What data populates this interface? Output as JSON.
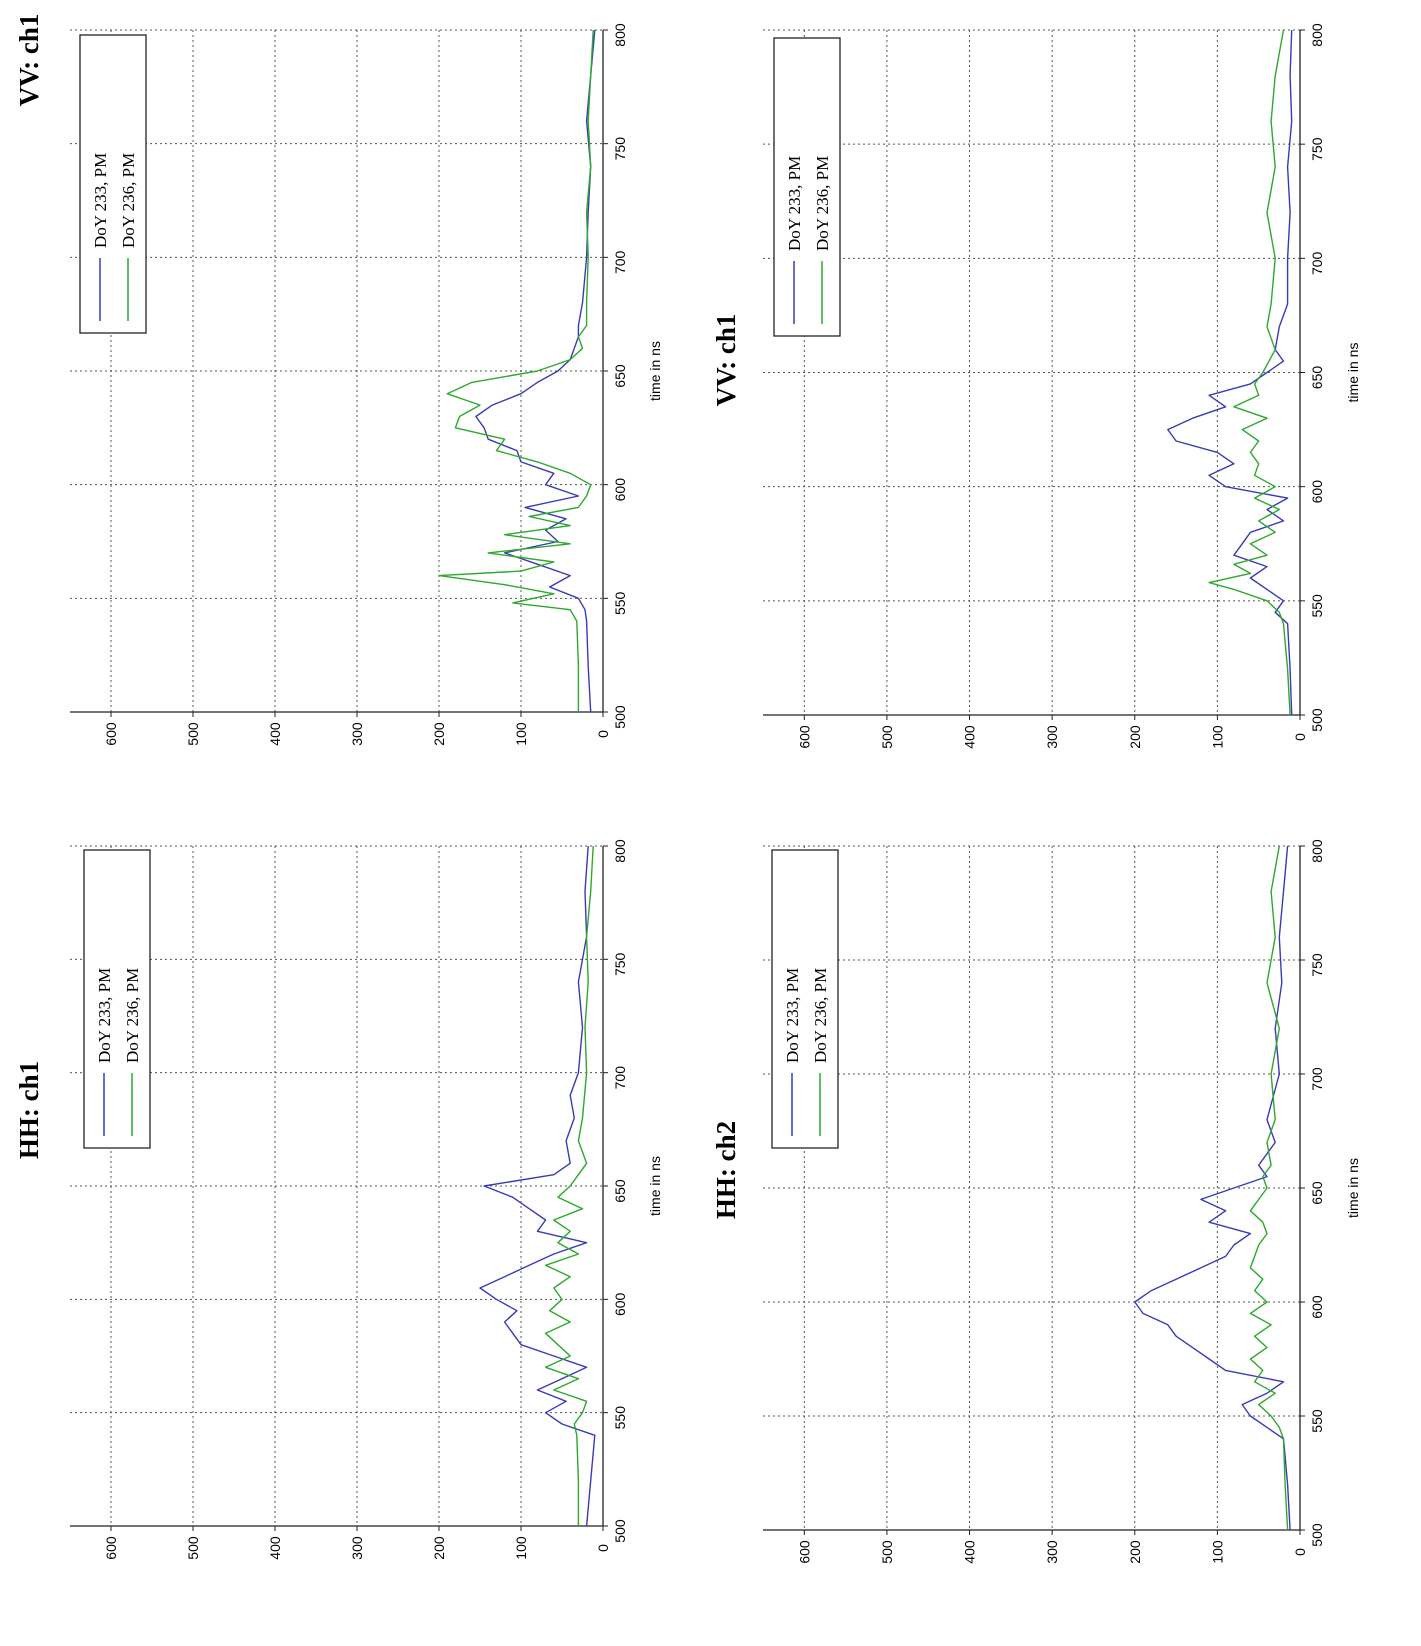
{
  "colors": {
    "series_1": "#3a3ab8",
    "series_2": "#2ea82e"
  },
  "chart_data": [
    {
      "type": "line",
      "title": "VV: ch1",
      "xlabel": "time in ns",
      "ylabel": "",
      "xlim": [
        500,
        800
      ],
      "ylim": [
        0,
        650
      ],
      "xticks": [
        "500",
        "550",
        "600",
        "650",
        "700",
        "750",
        "800"
      ],
      "yticks": [
        "0",
        "100",
        "200",
        "300",
        "400",
        "500",
        "600"
      ],
      "grid": true,
      "legend_position": "top-right",
      "orientation": "rotated 90 degrees counter-clockwise",
      "series": [
        {
          "name": "DoY 233, PM",
          "x": [
            500,
            520,
            540,
            545,
            550,
            555,
            560,
            565,
            570,
            575,
            580,
            585,
            590,
            595,
            600,
            605,
            610,
            615,
            620,
            625,
            630,
            635,
            640,
            645,
            650,
            655,
            660,
            665,
            670,
            680,
            700,
            720,
            740,
            760,
            780,
            800
          ],
          "y": [
            15,
            18,
            20,
            22,
            30,
            65,
            40,
            80,
            120,
            55,
            70,
            45,
            95,
            30,
            70,
            60,
            100,
            105,
            140,
            145,
            155,
            135,
            100,
            80,
            55,
            40,
            35,
            30,
            30,
            25,
            20,
            18,
            15,
            20,
            15,
            10
          ]
        },
        {
          "name": "DoY 236, PM",
          "x": [
            500,
            520,
            540,
            545,
            548,
            552,
            556,
            560,
            562,
            566,
            570,
            574,
            578,
            582,
            586,
            590,
            595,
            600,
            605,
            610,
            615,
            620,
            625,
            630,
            635,
            640,
            645,
            650,
            655,
            660,
            665,
            670,
            680,
            700,
            720,
            740,
            760,
            780,
            800
          ],
          "y": [
            30,
            30,
            32,
            40,
            110,
            60,
            120,
            200,
            100,
            60,
            140,
            40,
            120,
            40,
            90,
            30,
            20,
            15,
            40,
            80,
            130,
            120,
            180,
            175,
            150,
            190,
            160,
            80,
            40,
            25,
            30,
            20,
            20,
            18,
            20,
            15,
            18,
            15,
            12
          ]
        }
      ]
    },
    {
      "type": "line",
      "title": "HH: ch1",
      "xlabel": "time in ns",
      "ylabel": "",
      "xlim": [
        500,
        800
      ],
      "ylim": [
        0,
        650
      ],
      "xticks": [
        "500",
        "550",
        "600",
        "650",
        "700",
        "750",
        "800"
      ],
      "yticks": [
        "0",
        "100",
        "200",
        "300",
        "400",
        "500",
        "600"
      ],
      "grid": true,
      "legend_position": "top-right",
      "orientation": "rotated 90 degrees counter-clockwise",
      "series": [
        {
          "name": "DoY 233, PM",
          "x": [
            500,
            520,
            540,
            545,
            550,
            555,
            560,
            565,
            570,
            575,
            580,
            585,
            590,
            595,
            600,
            605,
            610,
            615,
            620,
            625,
            630,
            635,
            640,
            645,
            650,
            655,
            660,
            670,
            680,
            690,
            700,
            720,
            740,
            760,
            780,
            800
          ],
          "y": [
            20,
            15,
            10,
            50,
            70,
            45,
            80,
            50,
            20,
            60,
            100,
            110,
            120,
            105,
            130,
            150,
            120,
            90,
            60,
            20,
            80,
            70,
            90,
            110,
            145,
            60,
            40,
            45,
            35,
            40,
            30,
            25,
            30,
            20,
            22,
            18
          ]
        },
        {
          "name": "DoY 236, PM",
          "x": [
            500,
            520,
            540,
            545,
            550,
            555,
            560,
            565,
            570,
            575,
            580,
            585,
            590,
            595,
            600,
            605,
            610,
            615,
            620,
            625,
            630,
            635,
            640,
            645,
            650,
            655,
            660,
            670,
            680,
            700,
            720,
            740,
            760,
            780,
            800
          ],
          "y": [
            30,
            30,
            32,
            35,
            25,
            20,
            60,
            30,
            70,
            40,
            55,
            70,
            40,
            65,
            50,
            60,
            40,
            70,
            30,
            55,
            40,
            60,
            25,
            55,
            40,
            30,
            20,
            30,
            25,
            20,
            22,
            18,
            20,
            15,
            12
          ]
        }
      ]
    },
    {
      "type": "line",
      "title": "VV: ch1",
      "xlabel": "time in ns",
      "ylabel": "",
      "xlim": [
        500,
        800
      ],
      "ylim": [
        0,
        650
      ],
      "xticks": [
        "500",
        "550",
        "600",
        "650",
        "700",
        "750",
        "800"
      ],
      "yticks": [
        "0",
        "100",
        "200",
        "300",
        "400",
        "500",
        "600"
      ],
      "grid": true,
      "legend_position": "top-right",
      "orientation": "rotated 90 degrees counter-clockwise",
      "series": [
        {
          "name": "DoY 233, PM",
          "x": [
            500,
            520,
            540,
            545,
            550,
            555,
            560,
            565,
            570,
            575,
            580,
            585,
            590,
            595,
            600,
            605,
            610,
            615,
            620,
            625,
            630,
            635,
            640,
            645,
            650,
            655,
            660,
            670,
            680,
            700,
            720,
            740,
            760,
            780,
            800
          ],
          "y": [
            10,
            12,
            15,
            30,
            20,
            40,
            60,
            40,
            80,
            70,
            60,
            20,
            40,
            15,
            90,
            110,
            80,
            100,
            150,
            160,
            130,
            90,
            110,
            60,
            40,
            20,
            30,
            25,
            15,
            15,
            12,
            15,
            10,
            12,
            10
          ]
        },
        {
          "name": "DoY 236, PM",
          "x": [
            500,
            520,
            540,
            545,
            550,
            555,
            558,
            562,
            566,
            570,
            575,
            580,
            585,
            590,
            595,
            600,
            605,
            610,
            615,
            620,
            625,
            630,
            635,
            640,
            645,
            650,
            660,
            670,
            680,
            700,
            720,
            740,
            760,
            780,
            800
          ],
          "y": [
            12,
            15,
            20,
            25,
            40,
            80,
            110,
            60,
            80,
            40,
            60,
            30,
            50,
            25,
            55,
            30,
            55,
            50,
            60,
            50,
            70,
            40,
            80,
            50,
            55,
            45,
            30,
            40,
            35,
            30,
            40,
            30,
            35,
            30,
            20
          ]
        }
      ]
    },
    {
      "type": "line",
      "title": "HH: ch2",
      "xlabel": "time in ns",
      "ylabel": "",
      "xlim": [
        500,
        800
      ],
      "ylim": [
        0,
        650
      ],
      "xticks": [
        "500",
        "550",
        "600",
        "650",
        "700",
        "750",
        "800"
      ],
      "yticks": [
        "0",
        "100",
        "200",
        "300",
        "400",
        "500",
        "600"
      ],
      "grid": true,
      "legend_position": "top-right",
      "orientation": "rotated 90 degrees counter-clockwise",
      "series": [
        {
          "name": "DoY 233, PM",
          "x": [
            500,
            520,
            540,
            545,
            550,
            555,
            560,
            565,
            570,
            575,
            580,
            585,
            590,
            595,
            600,
            605,
            610,
            615,
            620,
            625,
            630,
            635,
            640,
            645,
            650,
            655,
            660,
            670,
            680,
            700,
            720,
            740,
            760,
            780,
            800
          ],
          "y": [
            12,
            15,
            20,
            40,
            60,
            70,
            40,
            20,
            90,
            110,
            130,
            150,
            160,
            190,
            200,
            180,
            150,
            120,
            90,
            80,
            60,
            110,
            90,
            120,
            80,
            40,
            50,
            30,
            40,
            25,
            30,
            22,
            25,
            20,
            15
          ]
        },
        {
          "name": "DoY 236, PM",
          "x": [
            500,
            520,
            540,
            545,
            550,
            555,
            560,
            565,
            570,
            575,
            580,
            585,
            590,
            595,
            600,
            605,
            610,
            615,
            620,
            625,
            630,
            635,
            640,
            645,
            650,
            655,
            660,
            670,
            680,
            700,
            720,
            740,
            760,
            780,
            800
          ],
          "y": [
            15,
            18,
            20,
            25,
            35,
            50,
            30,
            55,
            45,
            60,
            40,
            55,
            35,
            60,
            40,
            55,
            45,
            60,
            55,
            50,
            40,
            45,
            60,
            50,
            40,
            45,
            35,
            40,
            30,
            35,
            25,
            40,
            30,
            35,
            25
          ]
        }
      ]
    }
  ]
}
